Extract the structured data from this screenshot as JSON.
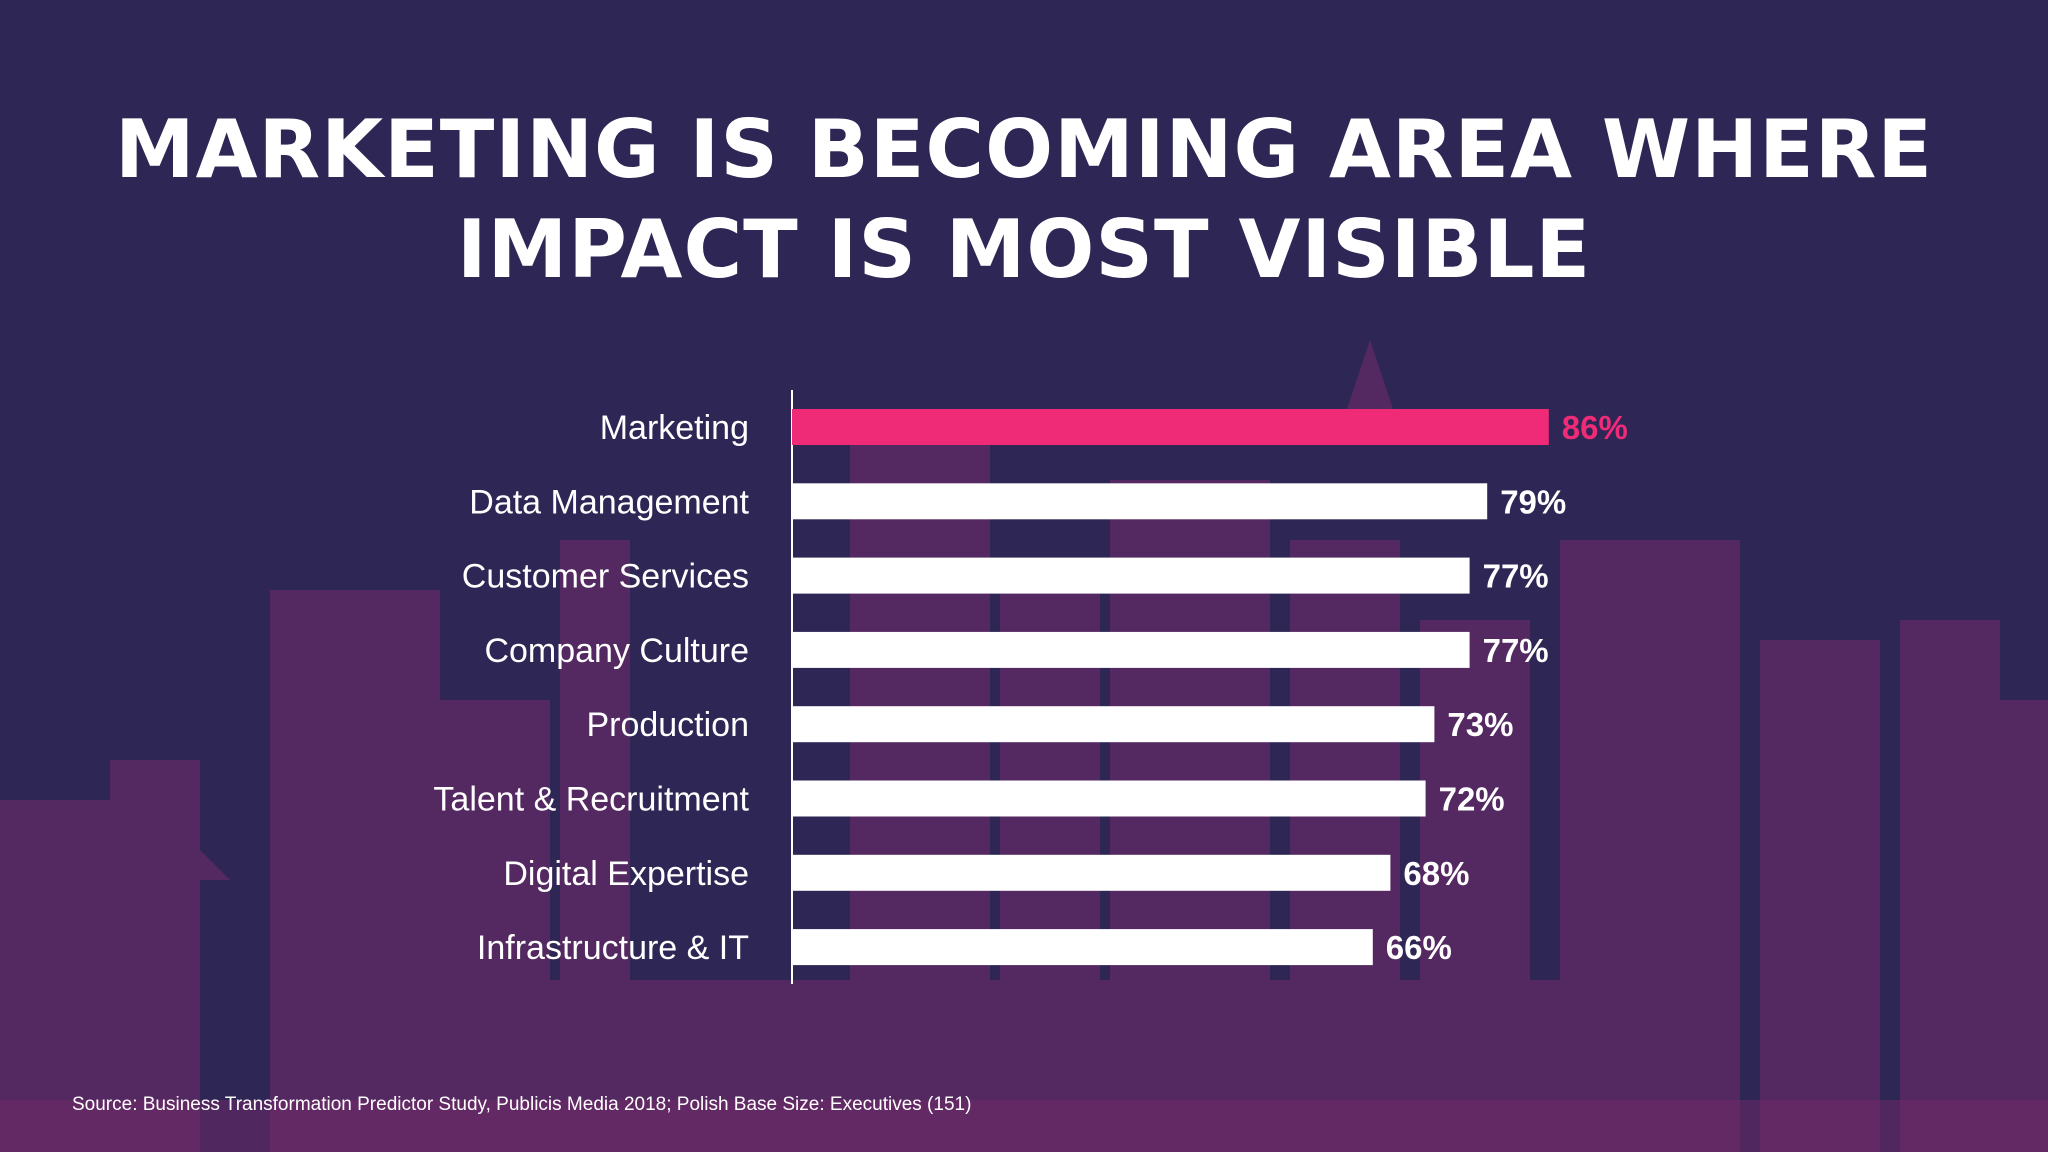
{
  "slide": {
    "title_line1": "MARKETING IS BECOMING AREA WHERE",
    "title_line2": "IMPACT IS MOST VISIBLE",
    "source": "Source: Business Transformation Predictor Study, Publicis Media 2018; Polish Base Size: Executives (151)"
  },
  "colors": {
    "background": "#2e2654",
    "highlight": "#ef2b78",
    "bar": "#ffffff",
    "skyline": "#7a2a6e"
  },
  "chart_data": {
    "type": "bar",
    "orientation": "horizontal",
    "title": "MARKETING IS BECOMING AREA WHERE IMPACT IS MOST VISIBLE",
    "categories": [
      "Marketing",
      "Data Management",
      "Customer Services",
      "Company Culture",
      "Production",
      "Talent & Recruitment",
      "Digital Expertise",
      "Infrastructure & IT"
    ],
    "values": [
      86,
      79,
      77,
      77,
      73,
      72,
      68,
      66
    ],
    "value_labels": [
      "86%",
      "79%",
      "77%",
      "77%",
      "73%",
      "72%",
      "68%",
      "66%"
    ],
    "highlight_index": 0,
    "xlim": [
      0,
      100
    ],
    "grid": false,
    "legend": "none"
  }
}
